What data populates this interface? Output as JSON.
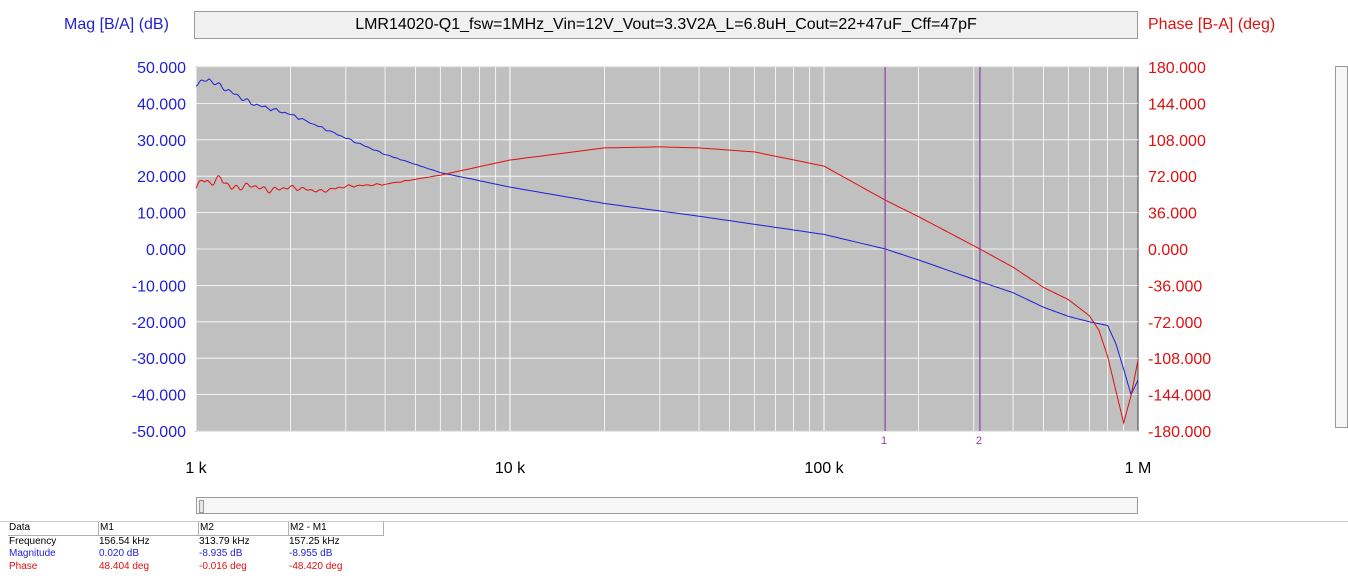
{
  "chart_data": {
    "type": "line",
    "title": "LMR14020-Q1_fsw=1MHz_Vin=12V_Vout=3.3V2A_L=6.8uH_Cout=22+47uF_Cff=47pF",
    "y_left_label": "Mag [B/A] (dB)",
    "y_right_label": "Phase [B-A] (deg)",
    "x_scale": "log",
    "xlim": [
      1000,
      1000000
    ],
    "x_ticks": [
      {
        "value": 1000,
        "label": "1 k"
      },
      {
        "value": 10000,
        "label": "10 k"
      },
      {
        "value": 100000,
        "label": "100 k"
      },
      {
        "value": 1000000,
        "label": "1 M"
      }
    ],
    "y_left_lim": [
      -50,
      50
    ],
    "y_left_ticks": [
      "50.000",
      "40.000",
      "30.000",
      "20.000",
      "10.000",
      "0.000",
      "-10.000",
      "-20.000",
      "-30.000",
      "-40.000",
      "-50.000"
    ],
    "y_right_lim": [
      -180,
      180
    ],
    "y_right_ticks": [
      "180.000",
      "144.000",
      "108.000",
      "72.000",
      "36.000",
      "0.000",
      "-36.000",
      "-72.000",
      "-108.000",
      "-144.000",
      "-180.000"
    ],
    "grid": true,
    "background": "#c0c0c0",
    "series": [
      {
        "axis": "left",
        "color": "#1f1fd6",
        "x": [
          1000,
          1100,
          1300,
          1500,
          2000,
          3000,
          4000,
          6000,
          10000,
          20000,
          40000,
          60000,
          100000,
          156540,
          200000,
          313790,
          400000,
          500000,
          600000,
          700000,
          800000,
          850000,
          900000,
          950000,
          1000000
        ],
        "y": [
          45.5,
          46.5,
          43,
          40,
          37,
          30.5,
          26,
          21,
          17,
          12.5,
          9,
          6.8,
          4,
          0.02,
          -3,
          -8.935,
          -12,
          -16,
          -18.5,
          -20,
          -21,
          -26,
          -33,
          -40,
          -36
        ]
      },
      {
        "axis": "right",
        "color": "#e01010",
        "x": [
          1000,
          1050,
          1100,
          1200,
          1300,
          1500,
          1700,
          2000,
          2500,
          3000,
          4000,
          6000,
          10000,
          20000,
          30000,
          40000,
          60000,
          100000,
          156540,
          200000,
          313790,
          400000,
          500000,
          600000,
          700000,
          750000,
          800000,
          850000,
          900000,
          950000,
          1000000
        ],
        "y": [
          63,
          68,
          65,
          70,
          60,
          63,
          58,
          61,
          57,
          62,
          64,
          73,
          88,
          100,
          101,
          100,
          96,
          82,
          48.404,
          32,
          -0.016,
          -18,
          -38,
          -50,
          -66,
          -80,
          -106,
          -140,
          -172,
          -145,
          -110
        ]
      }
    ],
    "markers": [
      {
        "label": "1",
        "x": 156540,
        "color": "#8a3fa8"
      },
      {
        "label": "2",
        "x": 313790,
        "color": "#8a3fa8"
      }
    ]
  },
  "table": {
    "headers": [
      "Data",
      "M1",
      "M2",
      "M2 - M1"
    ],
    "rows": [
      {
        "color": "#000000",
        "cells": [
          "Frequency",
          "156.54 kHz",
          "313.79 kHz",
          "157.25 kHz"
        ]
      },
      {
        "color": "#1f1fd6",
        "cells": [
          "Magnitude",
          "0.020 dB",
          "-8.935 dB",
          "-8.955 dB"
        ]
      },
      {
        "color": "#e01010",
        "cells": [
          "Phase",
          "48.404 deg",
          "-0.016 deg",
          "-48.420 deg"
        ]
      }
    ]
  }
}
